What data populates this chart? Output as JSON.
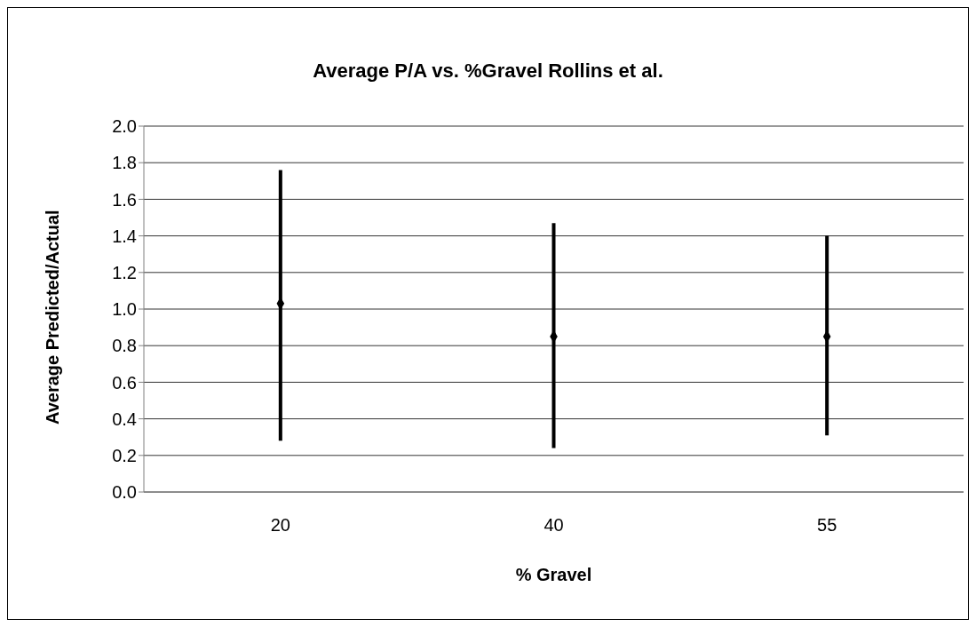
{
  "chart_data": {
    "type": "scatter",
    "title": "Average P/A vs. %Gravel Rollins et al.",
    "xlabel": "% Gravel",
    "ylabel": "Average Predicted/Actual",
    "categories": [
      "20",
      "40",
      "55"
    ],
    "series": [
      {
        "color": "#000000",
        "values": [
          1.03,
          0.85,
          0.85
        ],
        "errors": [
          [
            0.28,
            1.76
          ],
          [
            0.24,
            1.47
          ],
          [
            0.31,
            1.4
          ]
        ]
      }
    ],
    "ylim": [
      0,
      2
    ],
    "yticks": [
      {
        "value": 0,
        "label": "0.0"
      },
      {
        "value": 0.2,
        "label": "0.2"
      },
      {
        "value": 0.4,
        "label": "0.4"
      },
      {
        "value": 0.6,
        "label": "0.6"
      },
      {
        "value": 0.8,
        "label": "0.8"
      },
      {
        "value": 1,
        "label": "1.0"
      },
      {
        "value": 1.2,
        "label": "1.2"
      },
      {
        "value": 1.4,
        "label": "1.4"
      },
      {
        "value": 1.6,
        "label": "1.6"
      },
      {
        "value": 1.8,
        "label": "1.8"
      },
      {
        "value": 2,
        "label": "2.0"
      }
    ],
    "grid": "y",
    "marker": "diamond",
    "legend": false
  }
}
